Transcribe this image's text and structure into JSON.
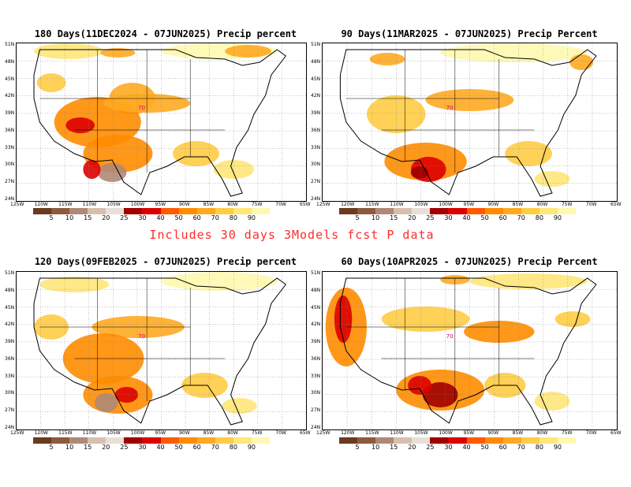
{
  "panels": [
    {
      "title": "180 Days(11DEC2024 - 07JUN2025) Precip percent"
    },
    {
      "title": "90 Days(11MAR2025 - 07JUN2025) Precip Percent"
    },
    {
      "title": "120 Days(09FEB2025 - 07JUN2025) Precip percent"
    },
    {
      "title": "60 Days(10APR2025 - 07JUN2025) Precip Percent"
    }
  ],
  "notice": "Includes 30 days 3Models fcst P data",
  "lat_labels": [
    "51N",
    "48N",
    "45N",
    "42N",
    "39N",
    "36N",
    "33N",
    "30N",
    "27N",
    "24N"
  ],
  "lon_labels": [
    "125W",
    "120W",
    "115W",
    "110W",
    "105W",
    "100W",
    "95W",
    "90W",
    "85W",
    "80W",
    "75W",
    "70W",
    "65W"
  ],
  "colorbar": {
    "ticks": [
      "5",
      "10",
      "15",
      "20",
      "25",
      "30",
      "40",
      "50",
      "60",
      "70",
      "80",
      "90"
    ],
    "colors": [
      "#6b3a1f",
      "#8c5a3c",
      "#b08877",
      "#d7bfb0",
      "#e8e0d8",
      "#a00000",
      "#dd0000",
      "#ff5a00",
      "#ff8c00",
      "#ffaa22",
      "#ffcc44",
      "#ffe77a",
      "#fff8b0"
    ]
  },
  "contour_label": "70"
}
